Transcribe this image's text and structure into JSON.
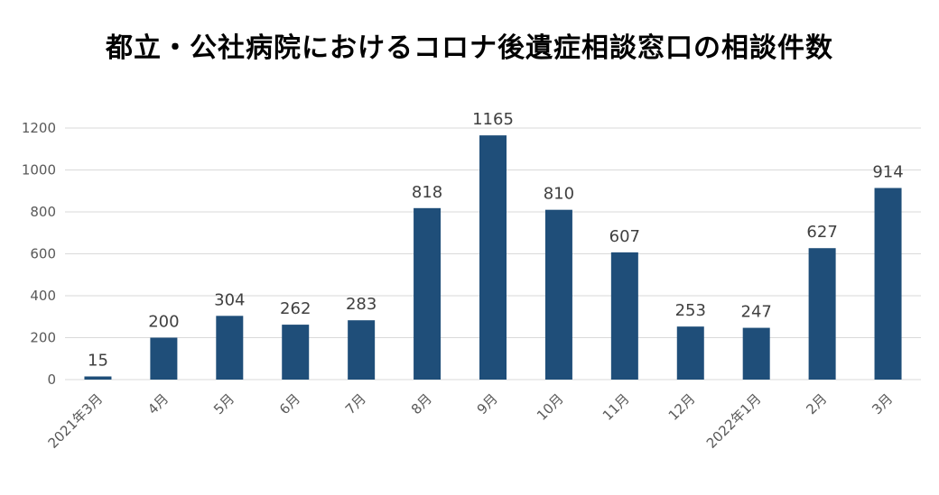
{
  "chart_data": {
    "type": "bar",
    "title": "都立・公社病院におけるコロナ後遺症相談窓口の相談件数",
    "xlabel": "",
    "ylabel": "",
    "categories": [
      "2021年3月",
      "4月",
      "5月",
      "6月",
      "7月",
      "8月",
      "9月",
      "10月",
      "11月",
      "12月",
      "2022年1月",
      "2月",
      "3月"
    ],
    "values": [
      15,
      200,
      304,
      262,
      283,
      818,
      1165,
      810,
      607,
      253,
      247,
      627,
      914
    ],
    "ylim": [
      0,
      1200
    ],
    "yticks": [
      0,
      200,
      400,
      600,
      800,
      1000,
      1200
    ],
    "grid": true,
    "legend": "none",
    "bar_color": "#1f4e79",
    "grid_color": "#d9d9d9"
  }
}
